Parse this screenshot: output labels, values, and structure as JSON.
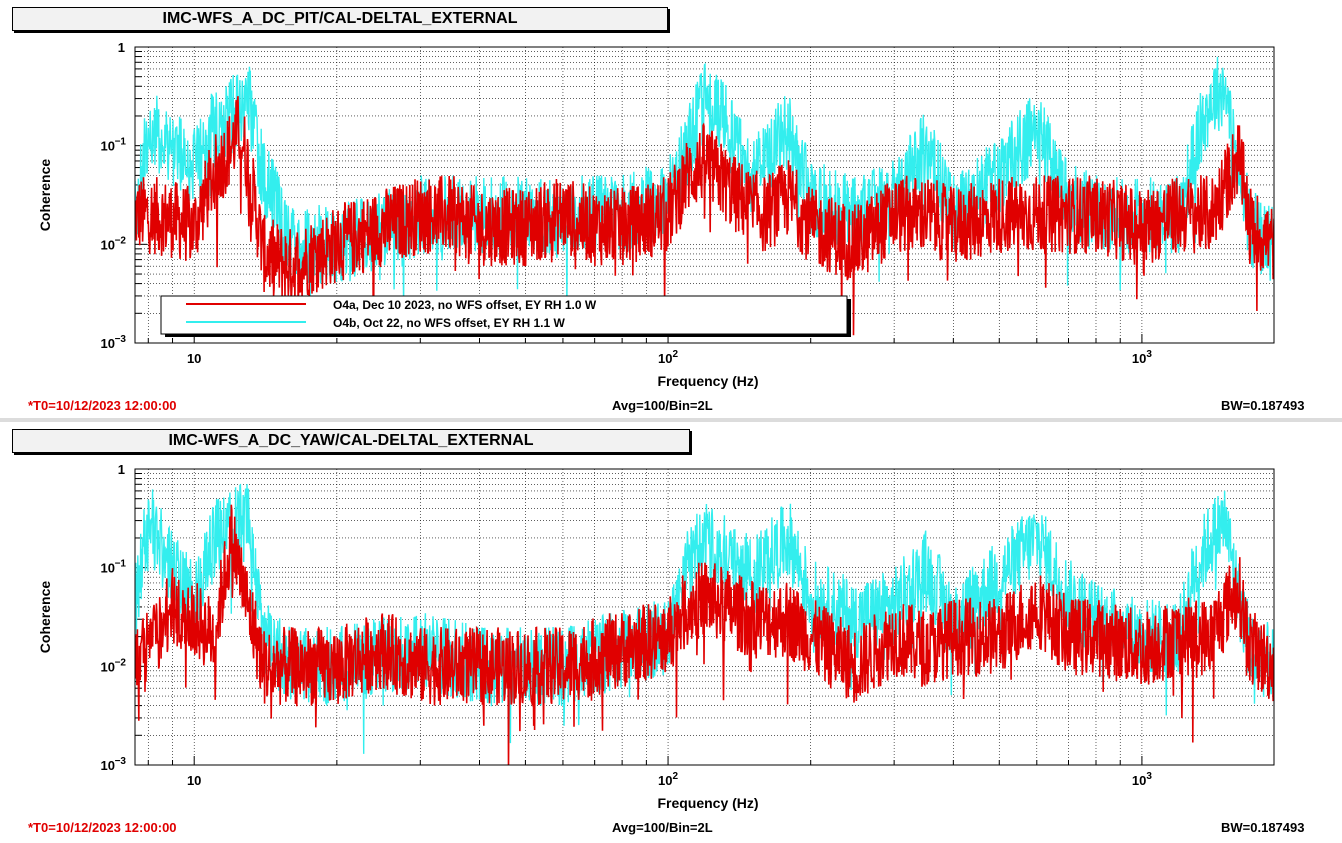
{
  "colors": {
    "red_series": "#e00000",
    "cyan_series": "#33eeee"
  },
  "chart_data": [
    {
      "type": "line",
      "title": "IMC-WFS_A_DC_PIT/CAL-DELTAL_EXTERNAL",
      "xlabel": "Frequency (Hz)",
      "ylabel": "Coherence",
      "x_scale": "log",
      "y_scale": "log",
      "xlim": [
        7.5,
        1900
      ],
      "ylim": [
        0.001,
        1
      ],
      "grid": true,
      "legend_position": "bottom-left",
      "series": [
        {
          "name": "O4a, Dec 10 2023, no WFS offset, EY RH 1.0 W",
          "color": "#e00000",
          "x": [
            7.5,
            8,
            9,
            10,
            11,
            12,
            12.5,
            13,
            14,
            16,
            20,
            25,
            30,
            35,
            40,
            50,
            60,
            70,
            80,
            100,
            110,
            120,
            140,
            160,
            180,
            200,
            250,
            300,
            350,
            400,
            500,
            600,
            700,
            800,
            1000,
            1200,
            1400,
            1500,
            1600,
            1700,
            1900
          ],
          "y": [
            0.02,
            0.02,
            0.018,
            0.015,
            0.05,
            0.1,
            0.15,
            0.06,
            0.008,
            0.006,
            0.01,
            0.015,
            0.02,
            0.02,
            0.015,
            0.015,
            0.02,
            0.015,
            0.015,
            0.02,
            0.05,
            0.07,
            0.03,
            0.02,
            0.03,
            0.015,
            0.01,
            0.02,
            0.02,
            0.015,
            0.02,
            0.02,
            0.02,
            0.02,
            0.015,
            0.02,
            0.02,
            0.04,
            0.08,
            0.015,
            0.01
          ]
        },
        {
          "name": "O4b, Oct 22, no WFS offset, EY RH 1.1 W",
          "color": "#33eeee",
          "x": [
            7.5,
            8,
            9,
            10,
            11,
            12,
            13,
            14,
            16,
            20,
            30,
            40,
            60,
            80,
            100,
            110,
            120,
            130,
            150,
            180,
            200,
            250,
            300,
            350,
            400,
            500,
            600,
            700,
            800,
            1000,
            1200,
            1300,
            1400,
            1500,
            1600,
            1700,
            1900
          ],
          "y": [
            0.02,
            0.15,
            0.1,
            0.06,
            0.15,
            0.2,
            0.3,
            0.05,
            0.01,
            0.01,
            0.02,
            0.02,
            0.02,
            0.02,
            0.03,
            0.1,
            0.3,
            0.2,
            0.05,
            0.15,
            0.03,
            0.02,
            0.03,
            0.1,
            0.02,
            0.05,
            0.15,
            0.03,
            0.02,
            0.02,
            0.02,
            0.1,
            0.3,
            0.4,
            0.05,
            0.015,
            0.01
          ]
        }
      ]
    },
    {
      "type": "line",
      "title": "IMC-WFS_A_DC_YAW/CAL-DELTAL_EXTERNAL",
      "xlabel": "Frequency (Hz)",
      "ylabel": "Coherence",
      "x_scale": "log",
      "y_scale": "log",
      "xlim": [
        7.5,
        1900
      ],
      "ylim": [
        0.001,
        1
      ],
      "grid": true,
      "series": [
        {
          "name": "O4a, Dec 10 2023, no WFS offset, EY RH 1.0 W",
          "color": "#e00000",
          "x": [
            7.5,
            8,
            9,
            10,
            11,
            12,
            13,
            14,
            16,
            20,
            25,
            30,
            40,
            50,
            60,
            80,
            100,
            110,
            120,
            150,
            180,
            200,
            250,
            300,
            350,
            400,
            500,
            600,
            700,
            800,
            1000,
            1200,
            1400,
            1500,
            1600,
            1700,
            1900
          ],
          "y": [
            0.01,
            0.015,
            0.04,
            0.03,
            0.02,
            0.2,
            0.04,
            0.01,
            0.01,
            0.01,
            0.015,
            0.01,
            0.01,
            0.01,
            0.01,
            0.015,
            0.02,
            0.04,
            0.05,
            0.03,
            0.03,
            0.02,
            0.01,
            0.02,
            0.015,
            0.02,
            0.02,
            0.04,
            0.02,
            0.02,
            0.015,
            0.02,
            0.02,
            0.04,
            0.06,
            0.015,
            0.01
          ]
        },
        {
          "name": "O4b, Oct 22, no WFS offset, EY RH 1.1 W",
          "color": "#33eeee",
          "x": [
            7.5,
            8,
            9,
            10,
            11,
            12,
            13,
            14,
            16,
            20,
            30,
            40,
            60,
            80,
            100,
            110,
            120,
            130,
            150,
            180,
            200,
            250,
            300,
            350,
            400,
            500,
            600,
            700,
            800,
            1000,
            1200,
            1300,
            1400,
            1500,
            1600,
            1700,
            1900
          ],
          "y": [
            0.04,
            0.3,
            0.1,
            0.05,
            0.2,
            0.25,
            0.3,
            0.02,
            0.01,
            0.01,
            0.015,
            0.01,
            0.01,
            0.015,
            0.02,
            0.1,
            0.2,
            0.15,
            0.08,
            0.2,
            0.05,
            0.03,
            0.04,
            0.1,
            0.03,
            0.08,
            0.2,
            0.05,
            0.03,
            0.02,
            0.02,
            0.1,
            0.2,
            0.3,
            0.05,
            0.015,
            0.01
          ]
        }
      ]
    }
  ],
  "footers": [
    {
      "t0": "*T0=10/12/2023 12:00:00",
      "avg": "Avg=100/Bin=2L",
      "bw": "BW=0.187493"
    },
    {
      "t0": "*T0=10/12/2023 12:00:00",
      "avg": "Avg=100/Bin=2L",
      "bw": "BW=0.187493"
    }
  ]
}
